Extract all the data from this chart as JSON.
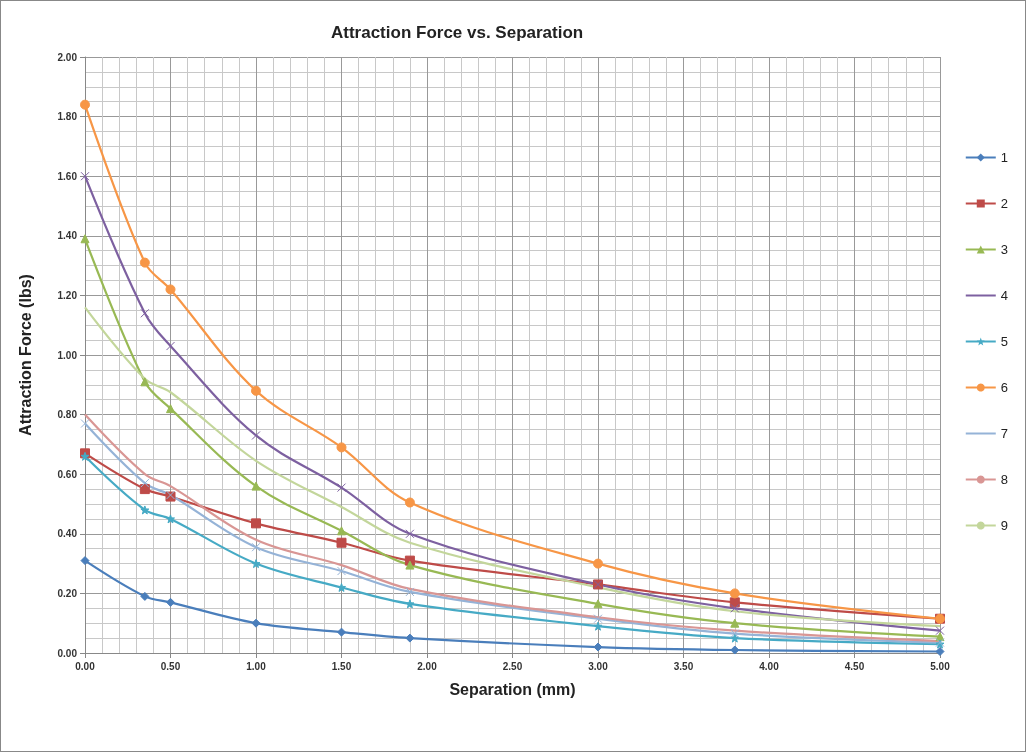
{
  "chart_data": {
    "type": "line",
    "title": "Attraction Force vs. Separation",
    "xlabel": "Separation (mm)",
    "ylabel": "Attraction Force (lbs)",
    "x": [
      0,
      0.35,
      0.5,
      1.0,
      1.5,
      1.9,
      3.0,
      3.8,
      5.0
    ],
    "series": [
      {
        "name": "1",
        "color": "#4a7ebb",
        "marker": "diamond",
        "values": [
          0.31,
          0.19,
          0.17,
          0.1,
          0.07,
          0.05,
          0.02,
          0.01,
          0.005
        ]
      },
      {
        "name": "2",
        "color": "#be4b48",
        "marker": "square",
        "values": [
          0.67,
          0.55,
          0.525,
          0.435,
          0.37,
          0.31,
          0.23,
          0.17,
          0.115
        ]
      },
      {
        "name": "3",
        "color": "#98b954",
        "marker": "triangle",
        "values": [
          1.39,
          0.91,
          0.82,
          0.56,
          0.41,
          0.295,
          0.165,
          0.1,
          0.055
        ]
      },
      {
        "name": "4",
        "color": "#7d60a0",
        "marker": "cross",
        "values": [
          1.6,
          1.14,
          1.03,
          0.73,
          0.555,
          0.4,
          0.23,
          0.15,
          0.075
        ]
      },
      {
        "name": "5",
        "color": "#46aac5",
        "marker": "star",
        "values": [
          0.66,
          0.48,
          0.45,
          0.3,
          0.22,
          0.165,
          0.09,
          0.05,
          0.03
        ]
      },
      {
        "name": "6",
        "color": "#f79646",
        "marker": "circle",
        "values": [
          1.84,
          1.31,
          1.22,
          0.88,
          0.69,
          0.505,
          0.3,
          0.2,
          0.115
        ]
      },
      {
        "name": "7",
        "color": "#95b3d7",
        "marker": "cross",
        "values": [
          0.77,
          0.57,
          0.53,
          0.355,
          0.275,
          0.205,
          0.115,
          0.065,
          0.035
        ]
      },
      {
        "name": "8",
        "color": "#d99694",
        "marker": "none",
        "values": [
          0.8,
          0.6,
          0.56,
          0.38,
          0.295,
          0.215,
          0.12,
          0.075,
          0.04
        ]
      },
      {
        "name": "9",
        "color": "#c3d69b",
        "marker": "none",
        "values": [
          1.16,
          0.92,
          0.875,
          0.645,
          0.49,
          0.37,
          0.22,
          0.14,
          0.09
        ]
      }
    ],
    "xlim": [
      0,
      5
    ],
    "xticks": [
      {
        "value": 0,
        "label": "0.00"
      },
      {
        "value": 0.5,
        "label": "0.50"
      },
      {
        "value": 1,
        "label": "1.00"
      },
      {
        "value": 1.5,
        "label": "1.50"
      },
      {
        "value": 2,
        "label": "2.00"
      },
      {
        "value": 2.5,
        "label": "2.50"
      },
      {
        "value": 3,
        "label": "3.00"
      },
      {
        "value": 3.5,
        "label": "3.50"
      },
      {
        "value": 4,
        "label": "4.00"
      },
      {
        "value": 4.5,
        "label": "4.50"
      },
      {
        "value": 5,
        "label": "5.00"
      }
    ],
    "ylim": [
      0,
      2
    ],
    "yticks": [
      {
        "value": 0,
        "label": "0.00"
      },
      {
        "value": 0.2,
        "label": "0.20"
      },
      {
        "value": 0.4,
        "label": "0.40"
      },
      {
        "value": 0.6,
        "label": "0.60"
      },
      {
        "value": 0.8,
        "label": "0.80"
      },
      {
        "value": 1,
        "label": "1.00"
      },
      {
        "value": 1.2,
        "label": "1.20"
      },
      {
        "value": 1.4,
        "label": "1.40"
      },
      {
        "value": 1.6,
        "label": "1.60"
      },
      {
        "value": 1.8,
        "label": "1.80"
      },
      {
        "value": 2,
        "label": "2.00"
      }
    ],
    "grid": true,
    "legend": "right",
    "line_style": "solid"
  }
}
